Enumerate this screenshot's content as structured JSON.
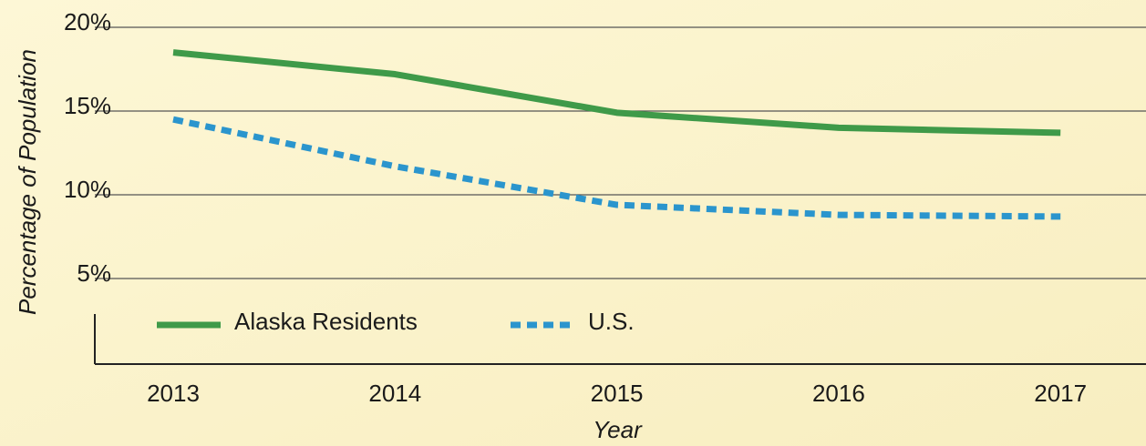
{
  "chart_data": {
    "type": "line",
    "x_label": "Year",
    "y_label": "Percentage of Population",
    "categories": [
      "2013",
      "2014",
      "2015",
      "2016",
      "2017"
    ],
    "series": [
      {
        "name": "Alaska Residents",
        "color": "#3f9a49",
        "style": "solid",
        "values": [
          18.5,
          17.2,
          14.9,
          14.0,
          13.7
        ]
      },
      {
        "name": "U.S.",
        "color": "#2b95cd",
        "style": "dotted",
        "values": [
          14.5,
          11.7,
          9.4,
          8.8,
          8.7
        ]
      }
    ],
    "ylim": [
      0,
      20
    ],
    "yticks": [
      {
        "value": 5,
        "label": "5%"
      },
      {
        "value": 10,
        "label": "10%"
      },
      {
        "value": 15,
        "label": "15%"
      },
      {
        "value": 20,
        "label": "20%"
      }
    ],
    "grid": true
  }
}
